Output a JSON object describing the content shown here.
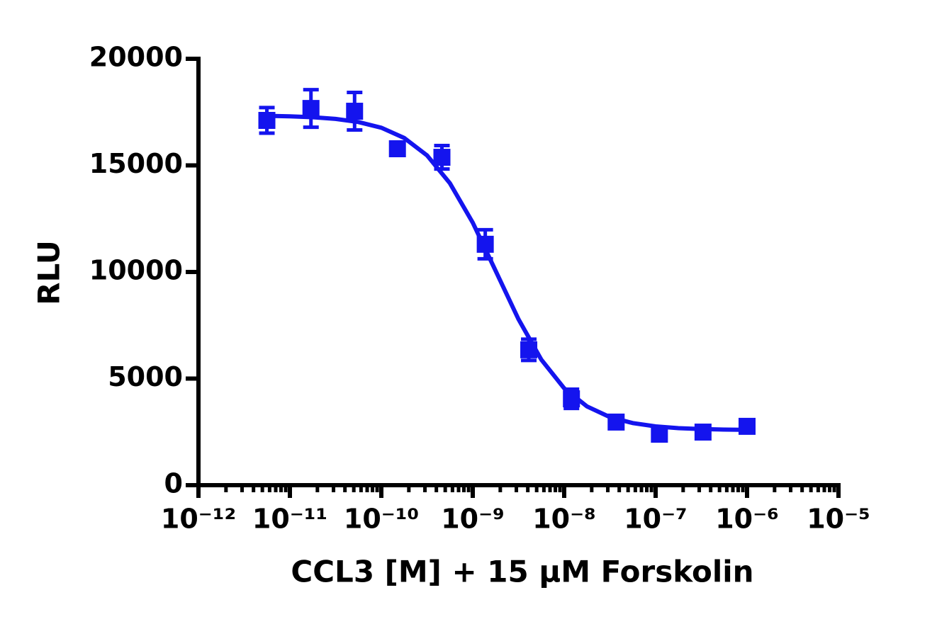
{
  "chart_data": {
    "type": "scatter",
    "xlabel": "CCL3 [M] + 15 µM Forskolin",
    "ylabel": "RLU",
    "xscale": "log",
    "xlim": [
      1e-12,
      1e-05
    ],
    "xticks": [
      {
        "value": 1e-12,
        "label": "10⁻¹²"
      },
      {
        "value": 1e-11,
        "label": "10⁻¹¹"
      },
      {
        "value": 1e-10,
        "label": "10⁻¹⁰"
      },
      {
        "value": 1e-09,
        "label": "10⁻⁹"
      },
      {
        "value": 1e-08,
        "label": "10⁻⁸"
      },
      {
        "value": 1e-07,
        "label": "10⁻⁷"
      },
      {
        "value": 1e-06,
        "label": "10⁻⁶"
      },
      {
        "value": 1e-05,
        "label": "10⁻⁵"
      }
    ],
    "minor_ticks": true,
    "ylim": [
      0,
      20000
    ],
    "yticks": [
      0,
      5000,
      10000,
      15000,
      20000
    ],
    "series": [
      {
        "color": "#1414ee",
        "x": [
          5.6e-12,
          1.7e-11,
          5.1e-11,
          1.5e-10,
          4.6e-10,
          1.37e-09,
          4.1e-09,
          1.2e-08,
          3.7e-08,
          1.1e-07,
          3.3e-07,
          1e-06
        ],
        "values": [
          17110,
          17670,
          17540,
          15780,
          15380,
          11300,
          6350,
          4050,
          2960,
          2390,
          2490,
          2760
        ],
        "errors": [
          600,
          880,
          880,
          250,
          550,
          680,
          500,
          450,
          150,
          100,
          120,
          100
        ]
      }
    ],
    "curve": {
      "color": "#1414ee",
      "x": [
        5.623e-12,
        1e-11,
        1.778e-11,
        3.162e-11,
        5.623e-11,
        1e-10,
        1.778e-10,
        3.162e-10,
        5.623e-10,
        1e-09,
        1.778e-09,
        3.162e-09,
        5.623e-09,
        1e-08,
        1.778e-08,
        3.162e-08,
        5.623e-08,
        1e-07,
        1.778e-07,
        3.162e-07,
        5.623e-07,
        1e-06
      ],
      "values": [
        17324,
        17302,
        17259,
        17181,
        17034,
        16766,
        16289,
        15469,
        14167,
        12312,
        10059,
        7786,
        5892,
        4544,
        3693,
        3192,
        2912,
        2758,
        2675,
        2631,
        2607,
        2594
      ]
    }
  }
}
